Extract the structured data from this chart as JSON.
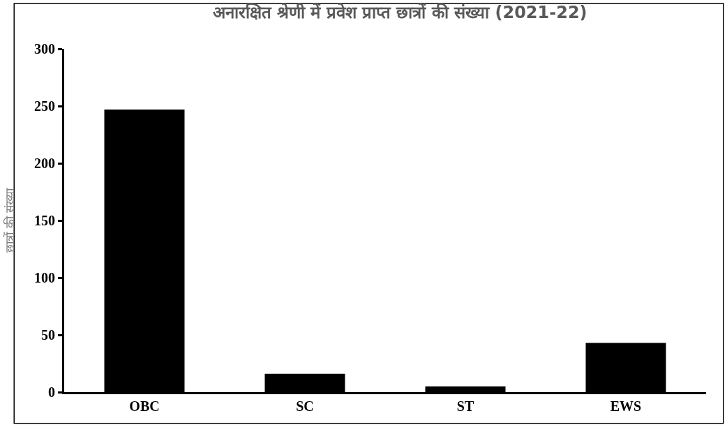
{
  "chart_data": {
    "type": "bar",
    "title": "अनारक्षित श्रेणी में प्रवेश प्राप्त छात्रों की संख्या (2021-22)",
    "ylabel": "छात्रों की संख्या",
    "categories": [
      "OBC",
      "SC",
      "ST",
      "EWS"
    ],
    "values": [
      247,
      16,
      5,
      43
    ],
    "color": "#000000",
    "ylim": [
      0,
      300
    ],
    "yticks": [
      0,
      50,
      100,
      150,
      200,
      250,
      300
    ]
  }
}
